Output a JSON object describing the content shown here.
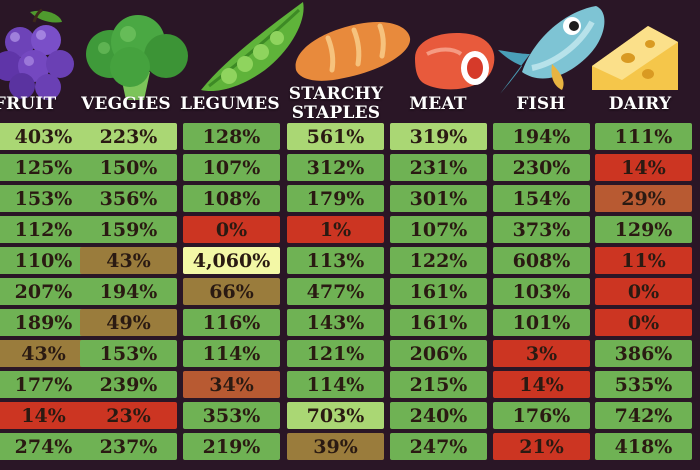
{
  "colors": {
    "background": "#2a1626",
    "good": "#6fb254",
    "very_high": "#aad774",
    "extreme": "#f3f8a6",
    "medium": "#9a7c3c",
    "warning": "#b85a32",
    "deficit": "#cc3522"
  },
  "icons": [
    "grapes-icon",
    "broccoli-icon",
    "pea-pod-icon",
    "bread-icon",
    "steak-icon",
    "fish-icon",
    "cheese-icon"
  ],
  "columns": [
    {
      "key": "fruit",
      "label": "FRUIT",
      "icon": "grapes-icon"
    },
    {
      "key": "veggies",
      "label": "VEGGIES",
      "icon": "broccoli-icon"
    },
    {
      "key": "legumes",
      "label": "LEGUMES",
      "icon": "pea-pod-icon"
    },
    {
      "key": "starchy",
      "label": "STARCHY\nSTAPLES",
      "icon": "bread-icon"
    },
    {
      "key": "meat",
      "label": "MEAT",
      "icon": "steak-icon"
    },
    {
      "key": "fish",
      "label": "FISH",
      "icon": "fish-icon"
    },
    {
      "key": "dairy",
      "label": "DAIRY",
      "icon": "cheese-icon"
    }
  ],
  "rows": [
    [
      {
        "v": "403%",
        "c": "very_high"
      },
      {
        "v": "223%",
        "c": "very_high"
      },
      {
        "v": "128%",
        "c": "good"
      },
      {
        "v": "561%",
        "c": "very_high"
      },
      {
        "v": "319%",
        "c": "very_high"
      },
      {
        "v": "194%",
        "c": "good"
      },
      {
        "v": "111%",
        "c": "good"
      }
    ],
    [
      {
        "v": "125%",
        "c": "good"
      },
      {
        "v": "150%",
        "c": "good"
      },
      {
        "v": "107%",
        "c": "good"
      },
      {
        "v": "312%",
        "c": "good"
      },
      {
        "v": "231%",
        "c": "good"
      },
      {
        "v": "230%",
        "c": "good"
      },
      {
        "v": "14%",
        "c": "deficit"
      }
    ],
    [
      {
        "v": "153%",
        "c": "good"
      },
      {
        "v": "356%",
        "c": "good"
      },
      {
        "v": "108%",
        "c": "good"
      },
      {
        "v": "179%",
        "c": "good"
      },
      {
        "v": "301%",
        "c": "good"
      },
      {
        "v": "154%",
        "c": "good"
      },
      {
        "v": "29%",
        "c": "warning"
      }
    ],
    [
      {
        "v": "112%",
        "c": "good"
      },
      {
        "v": "159%",
        "c": "good"
      },
      {
        "v": "0%",
        "c": "deficit"
      },
      {
        "v": "1%",
        "c": "deficit"
      },
      {
        "v": "107%",
        "c": "good"
      },
      {
        "v": "373%",
        "c": "good"
      },
      {
        "v": "129%",
        "c": "good"
      }
    ],
    [
      {
        "v": "110%",
        "c": "good"
      },
      {
        "v": "43%",
        "c": "medium"
      },
      {
        "v": "4,060%",
        "c": "extreme"
      },
      {
        "v": "113%",
        "c": "good"
      },
      {
        "v": "122%",
        "c": "good"
      },
      {
        "v": "608%",
        "c": "good"
      },
      {
        "v": "11%",
        "c": "deficit"
      }
    ],
    [
      {
        "v": "207%",
        "c": "good"
      },
      {
        "v": "194%",
        "c": "good"
      },
      {
        "v": "66%",
        "c": "medium"
      },
      {
        "v": "477%",
        "c": "good"
      },
      {
        "v": "161%",
        "c": "good"
      },
      {
        "v": "103%",
        "c": "good"
      },
      {
        "v": "0%",
        "c": "deficit"
      }
    ],
    [
      {
        "v": "189%",
        "c": "good"
      },
      {
        "v": "49%",
        "c": "medium"
      },
      {
        "v": "116%",
        "c": "good"
      },
      {
        "v": "143%",
        "c": "good"
      },
      {
        "v": "161%",
        "c": "good"
      },
      {
        "v": "101%",
        "c": "good"
      },
      {
        "v": "0%",
        "c": "deficit"
      }
    ],
    [
      {
        "v": "43%",
        "c": "medium"
      },
      {
        "v": "153%",
        "c": "good"
      },
      {
        "v": "114%",
        "c": "good"
      },
      {
        "v": "121%",
        "c": "good"
      },
      {
        "v": "206%",
        "c": "good"
      },
      {
        "v": "3%",
        "c": "deficit"
      },
      {
        "v": "386%",
        "c": "good"
      }
    ],
    [
      {
        "v": "177%",
        "c": "good"
      },
      {
        "v": "239%",
        "c": "good"
      },
      {
        "v": "34%",
        "c": "warning"
      },
      {
        "v": "114%",
        "c": "good"
      },
      {
        "v": "215%",
        "c": "good"
      },
      {
        "v": "14%",
        "c": "deficit"
      },
      {
        "v": "535%",
        "c": "good"
      }
    ],
    [
      {
        "v": "14%",
        "c": "deficit"
      },
      {
        "v": "23%",
        "c": "deficit"
      },
      {
        "v": "353%",
        "c": "good"
      },
      {
        "v": "703%",
        "c": "very_high"
      },
      {
        "v": "240%",
        "c": "good"
      },
      {
        "v": "176%",
        "c": "good"
      },
      {
        "v": "742%",
        "c": "good"
      }
    ],
    [
      {
        "v": "274%",
        "c": "good"
      },
      {
        "v": "237%",
        "c": "good"
      },
      {
        "v": "219%",
        "c": "good"
      },
      {
        "v": "39%",
        "c": "medium"
      },
      {
        "v": "247%",
        "c": "good"
      },
      {
        "v": "21%",
        "c": "deficit"
      },
      {
        "v": "418%",
        "c": "good"
      }
    ]
  ]
}
